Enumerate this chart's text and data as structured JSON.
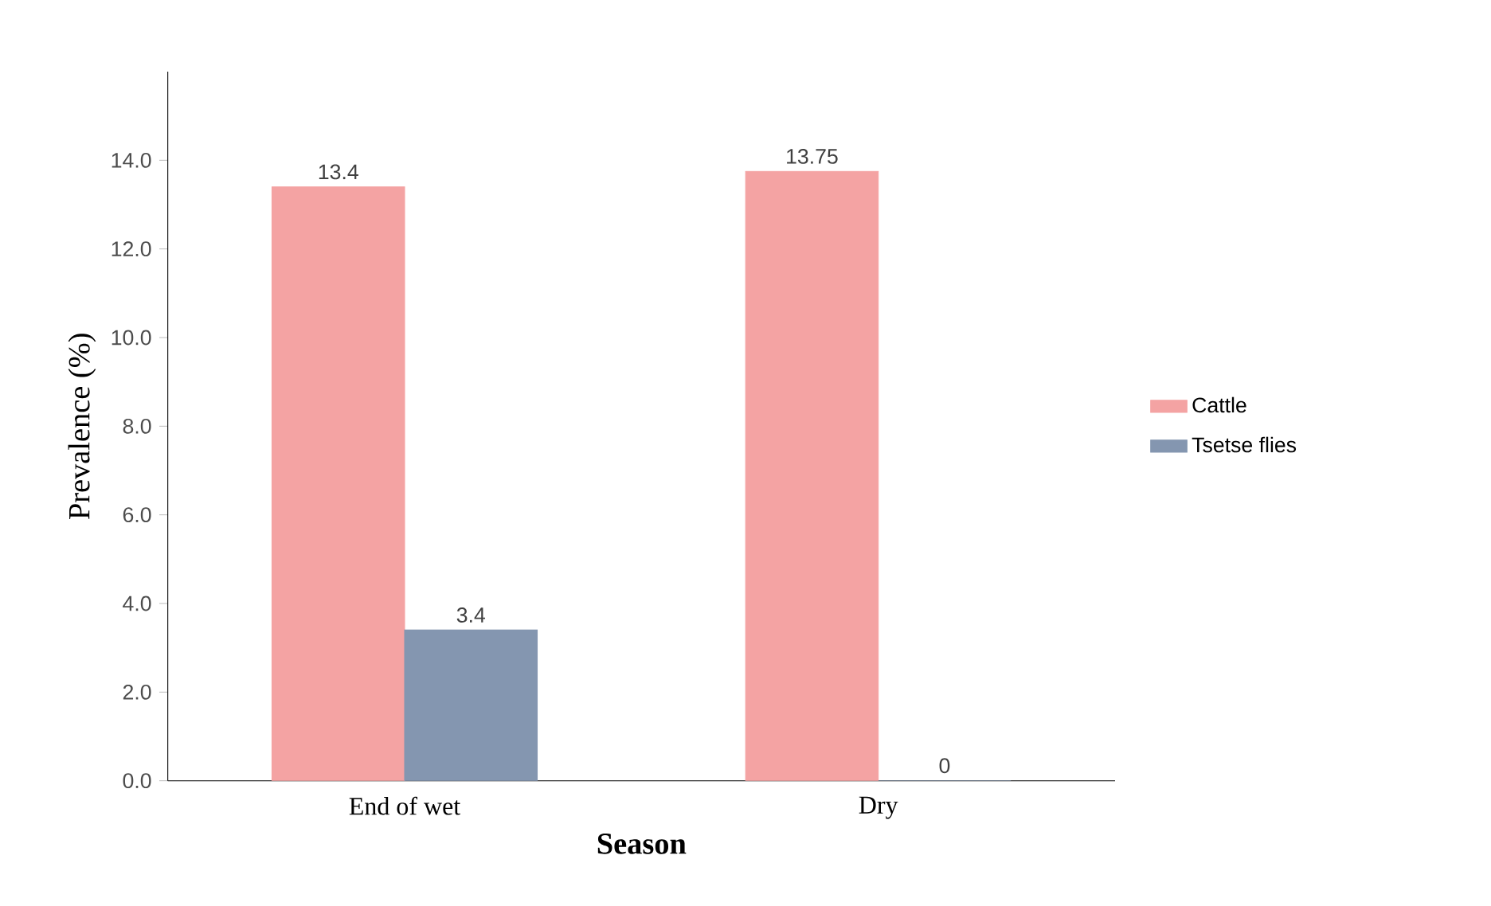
{
  "chart_data": {
    "type": "bar",
    "xlabel": "Season",
    "ylabel": "Prevalence (%)",
    "categories": [
      "End of wet",
      "Dry"
    ],
    "series": [
      {
        "name": "Cattle",
        "color": "#f4a3a3",
        "values": [
          13.4,
          13.75
        ]
      },
      {
        "name": "Tsetse flies",
        "color": "#8496b0",
        "values": [
          3.4,
          0
        ]
      }
    ],
    "ylim": [
      0,
      16
    ],
    "yticks": [
      {
        "value": 0,
        "label": "0.0"
      },
      {
        "value": 2,
        "label": "2.0"
      },
      {
        "value": 4,
        "label": "4.0"
      },
      {
        "value": 6,
        "label": "6.0"
      },
      {
        "value": 8,
        "label": "8.0"
      },
      {
        "value": 10,
        "label": "10.0"
      },
      {
        "value": 12,
        "label": "12.0"
      },
      {
        "value": 14,
        "label": "14.0"
      }
    ],
    "data_labels": true,
    "legend": "right",
    "grid": false
  }
}
